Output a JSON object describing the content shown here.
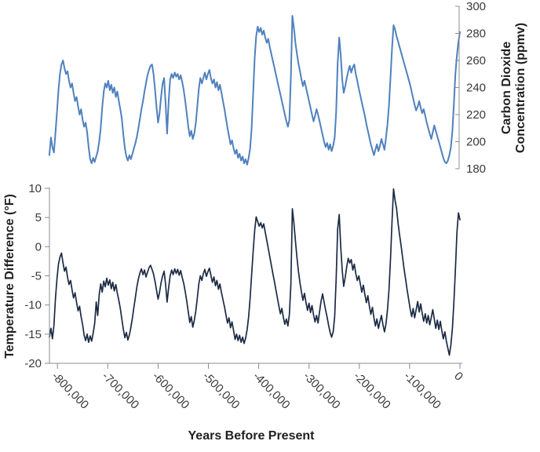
{
  "figure": {
    "background_color": "#ffffff",
    "axis_color": "#8c8c8c",
    "tick_text_color": "#3a3a3a",
    "title_text_color": "#1f1f1f"
  },
  "chart_data": [
    {
      "id": "co2",
      "type": "line",
      "series_name": "Carbon Dioxide Concentration",
      "color": "#4F81BD",
      "axis_side": "right",
      "ylabel_lines": [
        "Carbon Dioxide",
        "Concentration (ppmv)"
      ],
      "ylim": [
        180,
        300
      ],
      "yticks": [
        180,
        200,
        220,
        240,
        260,
        280,
        300
      ],
      "grid": false,
      "legend": "none",
      "x_start_year": -816000,
      "x_step_years": 3000,
      "values": [
        190,
        203,
        196,
        192,
        206,
        222,
        238,
        250,
        257,
        260,
        254,
        250,
        252,
        245,
        240,
        243,
        236,
        230,
        233,
        226,
        220,
        224,
        216,
        211,
        214,
        207,
        196,
        187,
        184,
        188,
        185,
        189,
        193,
        200,
        210,
        225,
        237,
        243,
        240,
        245,
        238,
        242,
        236,
        240,
        233,
        237,
        230,
        224,
        217,
        205,
        195,
        189,
        186,
        190,
        187,
        191,
        195,
        199,
        204,
        210,
        217,
        224,
        230,
        237,
        243,
        249,
        253,
        256,
        257,
        250,
        238,
        225,
        214,
        221,
        233,
        243,
        247,
        228,
        206,
        230,
        246,
        250,
        247,
        251,
        248,
        250,
        246,
        249,
        244,
        238,
        230,
        221,
        211,
        204,
        208,
        202,
        206,
        214,
        226,
        239,
        247,
        243,
        247,
        251,
        246,
        250,
        253,
        247,
        243,
        246,
        240,
        244,
        238,
        242,
        236,
        230,
        224,
        217,
        210,
        204,
        198,
        201,
        195,
        191,
        194,
        188,
        191,
        186,
        189,
        184,
        187,
        183,
        188,
        195,
        210,
        235,
        262,
        278,
        285,
        281,
        284,
        279,
        282,
        277,
        273,
        276,
        270,
        265,
        260,
        255,
        250,
        245,
        240,
        235,
        230,
        225,
        220,
        215,
        211,
        216,
        248,
        293,
        284,
        273,
        265,
        258,
        252,
        246,
        241,
        245,
        240,
        235,
        230,
        225,
        220,
        215,
        219,
        224,
        220,
        215,
        210,
        205,
        200,
        196,
        199,
        194,
        198,
        193,
        197,
        203,
        222,
        258,
        277,
        264,
        246,
        236,
        241,
        247,
        252,
        256,
        251,
        255,
        257,
        250,
        245,
        239,
        234,
        229,
        224,
        219,
        213,
        208,
        203,
        198,
        194,
        190,
        194,
        198,
        193,
        197,
        202,
        198,
        194,
        203,
        213,
        227,
        247,
        269,
        286,
        283,
        278,
        274,
        270,
        266,
        262,
        258,
        254,
        250,
        246,
        242,
        237,
        232,
        227,
        223,
        226,
        230,
        225,
        221,
        224,
        219,
        214,
        210,
        206,
        202,
        207,
        212,
        208,
        204,
        200,
        196,
        192,
        188,
        185,
        184,
        186,
        190,
        196,
        208,
        228,
        250,
        264,
        274,
        281
      ]
    },
    {
      "id": "temperature",
      "type": "line",
      "series_name": "Temperature Difference",
      "color": "#1B2A44",
      "axis_side": "left",
      "ylabel": "Temperature Difference (°F)",
      "ylim": [
        -20,
        10
      ],
      "yticks": [
        10,
        5,
        0,
        -5,
        -10,
        -15,
        -20
      ],
      "grid": false,
      "legend": "none",
      "xlabel": "Years Before Present",
      "xtick_years": [
        -800000,
        -700000,
        -600000,
        -500000,
        -400000,
        -300000,
        -200000,
        -100000,
        0
      ],
      "xtick_labels": [
        "-800,000",
        "-700,000",
        "-600,000",
        "-500,000",
        "-400,000",
        "-300,000",
        "-200,000",
        "-100,000",
        "0"
      ],
      "x_start_year": -816000,
      "x_step_years": 3000,
      "values": [
        -15.5,
        -14,
        -15.8,
        -13.5,
        -9,
        -5.5,
        -3,
        -1.8,
        -1.1,
        -2.8,
        -4.2,
        -3.5,
        -5.2,
        -6.5,
        -5.8,
        -7.4,
        -8.8,
        -7.9,
        -9.6,
        -11,
        -10.2,
        -12,
        -13.4,
        -15.2,
        -16.1,
        -15,
        -16.4,
        -15.3,
        -16.2,
        -14.8,
        -13.2,
        -9.5,
        -11.8,
        -8.2,
        -6.4,
        -7.8,
        -5.9,
        -6.9,
        -5.4,
        -6.6,
        -5.7,
        -7.2,
        -6.1,
        -7.6,
        -6.5,
        -8,
        -9.2,
        -10.6,
        -12.4,
        -14.2,
        -15.6,
        -14.7,
        -16,
        -15.1,
        -13.8,
        -12.2,
        -10.4,
        -8.6,
        -6.8,
        -5.5,
        -4.5,
        -3.8,
        -4.8,
        -4,
        -5.2,
        -4.4,
        -3.6,
        -3.2,
        -3.9,
        -4.7,
        -6,
        -7.5,
        -9,
        -7.8,
        -6.2,
        -5,
        -4.2,
        -6.5,
        -9.5,
        -7,
        -5,
        -4,
        -4.8,
        -3.8,
        -4.6,
        -3.9,
        -4.9,
        -4.1,
        -5.3,
        -6.3,
        -7.7,
        -9.3,
        -11.2,
        -13,
        -12,
        -13.8,
        -12.6,
        -11,
        -8.8,
        -6.4,
        -5,
        -5.8,
        -4.6,
        -3.9,
        -5.1,
        -4.3,
        -3.7,
        -4.9,
        -6.1,
        -5.2,
        -6.7,
        -5.8,
        -7.3,
        -6.4,
        -7.9,
        -9.1,
        -10.3,
        -11.7,
        -13.1,
        -12.2,
        -13.9,
        -12.9,
        -14.4,
        -15.9,
        -15,
        -16.1,
        -15.2,
        -16.4,
        -15.5,
        -16.6,
        -15.7,
        -14.2,
        -12,
        -8.8,
        -4.8,
        -0.9,
        2.8,
        5.1,
        4.3,
        3.5,
        4.1,
        3.2,
        3.9,
        2.5,
        1.1,
        -0.3,
        -1.7,
        -3.1,
        -4.5,
        -5.9,
        -7.3,
        -8.7,
        -10.1,
        -11.5,
        -10.6,
        -12.1,
        -13.3,
        -12.4,
        -13.6,
        -11.6,
        -6.5,
        6.5,
        4,
        1,
        -1.8,
        -4.2,
        -6.2,
        -7.8,
        -9.2,
        -8,
        -9.6,
        -10.9,
        -9.7,
        -11.3,
        -10.1,
        -11.7,
        -12.9,
        -11.8,
        -13.1,
        -11.1,
        -9.3,
        -8.1,
        -9.5,
        -10.9,
        -12.1,
        -13.5,
        -14.7,
        -15.5,
        -14.6,
        -12,
        -5.5,
        3,
        5.5,
        0,
        -4,
        -6.8,
        -5.2,
        -3.4,
        -2,
        -2.8,
        -2.2,
        -4,
        -3,
        -4.6,
        -5.8,
        -5,
        -6.4,
        -7.8,
        -6.6,
        -8.2,
        -9.6,
        -8.4,
        -10.2,
        -11.6,
        -10.4,
        -12.2,
        -13.6,
        -12.4,
        -14,
        -12.8,
        -11.8,
        -13.4,
        -14.6,
        -13.2,
        -10.8,
        -7.4,
        -2.2,
        4.4,
        9.9,
        8,
        6.6,
        4,
        2,
        0.2,
        -1.8,
        -3.8,
        -5.6,
        -7.4,
        -9,
        -10.6,
        -12,
        -10.6,
        -12.2,
        -10.8,
        -9.4,
        -11.2,
        -9.8,
        -11.4,
        -12.8,
        -11.5,
        -13.1,
        -11.8,
        -13.4,
        -12.1,
        -10.8,
        -12.4,
        -14,
        -12.6,
        -14.2,
        -12.8,
        -14.4,
        -15.8,
        -14.6,
        -16.2,
        -17.4,
        -18.6,
        -16.8,
        -14,
        -9.5,
        -4,
        2.5,
        5.8,
        4.6
      ]
    }
  ]
}
